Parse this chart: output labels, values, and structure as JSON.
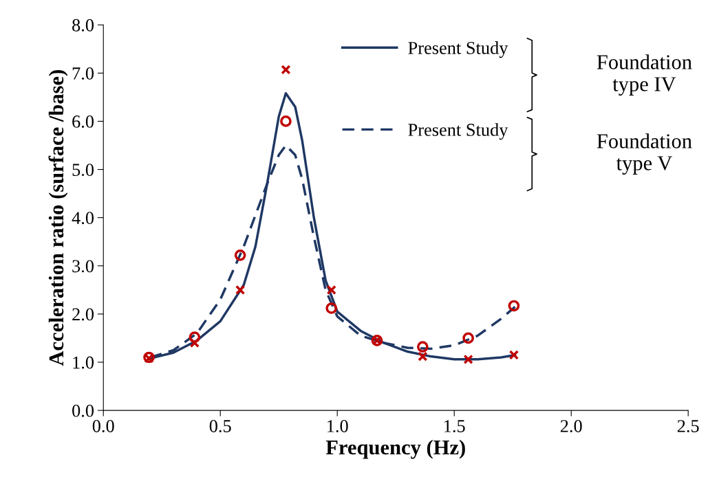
{
  "chart_data": {
    "type": "line",
    "xlabel": "Frequency (Hz)",
    "ylabel": "Acceleration ratio (surface /base)",
    "xlim": [
      0,
      2.5
    ],
    "xticks": [
      {
        "value": 0,
        "label": "0.0"
      },
      {
        "value": 0.5,
        "label": "0.5"
      },
      {
        "value": 1,
        "label": "1.0"
      },
      {
        "value": 1.5,
        "label": "1.5"
      },
      {
        "value": 2,
        "label": "2.0"
      },
      {
        "value": 2.5,
        "label": "2.5"
      }
    ],
    "ylim": [
      0,
      8
    ],
    "yticks": [
      {
        "value": 0,
        "label": "0.0"
      },
      {
        "value": 1,
        "label": "1.0"
      },
      {
        "value": 2,
        "label": "2.0"
      },
      {
        "value": 3,
        "label": "3.0"
      },
      {
        "value": 4,
        "label": "4.0"
      },
      {
        "value": 5,
        "label": "5.0"
      },
      {
        "value": 6,
        "label": "6.0"
      },
      {
        "value": 7,
        "label": "7.0"
      },
      {
        "value": 8,
        "label": "8.0"
      }
    ],
    "grid": false,
    "legend": "top right",
    "annotations": [
      "Foundation type IV",
      "Foundation type V"
    ],
    "series": [
      {
        "name": "Present Study",
        "line_style": "solid",
        "marker": "none",
        "color": "#1f3864",
        "x": [
          0.2,
          0.3,
          0.4,
          0.5,
          0.6,
          0.65,
          0.7,
          0.75,
          0.78,
          0.82,
          0.85,
          0.9,
          0.95,
          1.0,
          1.1,
          1.2,
          1.3,
          1.4,
          1.5,
          1.6,
          1.7,
          1.76
        ],
        "values": [
          1.08,
          1.2,
          1.45,
          1.85,
          2.6,
          3.4,
          4.7,
          6.1,
          6.58,
          6.3,
          5.6,
          4.0,
          2.7,
          2.05,
          1.65,
          1.4,
          1.22,
          1.12,
          1.06,
          1.06,
          1.1,
          1.15
        ]
      },
      {
        "type": "scatter",
        "marker": "cross",
        "color": "#c00000",
        "x": [
          0.195,
          0.39,
          0.585,
          0.78,
          0.975,
          1.17,
          1.365,
          1.56,
          1.755
        ],
        "values": [
          1.08,
          1.4,
          2.5,
          7.07,
          2.5,
          1.45,
          1.12,
          1.06,
          1.15
        ]
      },
      {
        "name": "Present Study",
        "line_style": "dashed",
        "marker": "none",
        "color": "#1f3864",
        "x": [
          0.2,
          0.3,
          0.4,
          0.5,
          0.6,
          0.7,
          0.75,
          0.78,
          0.82,
          0.85,
          0.9,
          0.95,
          1.0,
          1.1,
          1.2,
          1.3,
          1.4,
          1.5,
          1.6,
          1.7,
          1.76
        ],
        "values": [
          1.1,
          1.25,
          1.6,
          2.3,
          3.4,
          4.7,
          5.3,
          5.5,
          5.3,
          4.8,
          3.6,
          2.5,
          1.95,
          1.55,
          1.4,
          1.3,
          1.28,
          1.35,
          1.55,
          1.9,
          2.15
        ]
      },
      {
        "type": "scatter",
        "marker": "circle",
        "color": "#c00000",
        "x": [
          0.195,
          0.39,
          0.585,
          0.78,
          0.975,
          1.17,
          1.365,
          1.56,
          1.755
        ],
        "values": [
          1.1,
          1.52,
          3.22,
          6.0,
          2.12,
          1.45,
          1.32,
          1.5,
          2.17
        ]
      }
    ]
  }
}
